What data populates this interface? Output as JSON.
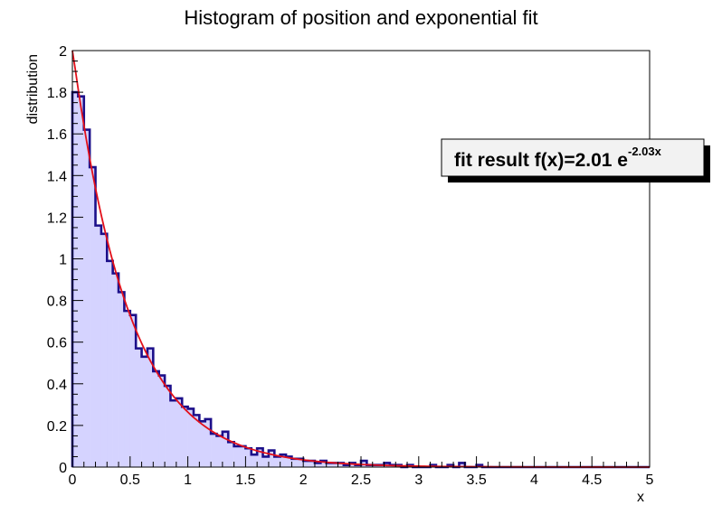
{
  "chart_data": {
    "type": "bar",
    "title": "Histogram of position and exponential fit",
    "xlabel": "x",
    "ylabel": "distribution",
    "xlim": [
      0,
      5
    ],
    "ylim": [
      0,
      2
    ],
    "xticks": [
      "0",
      "0.5",
      "1",
      "1.5",
      "2",
      "2.5",
      "3",
      "3.5",
      "4",
      "4.5",
      "5"
    ],
    "yticks": [
      "0",
      "0.2",
      "0.4",
      "0.6",
      "0.8",
      "1",
      "1.2",
      "1.4",
      "1.6",
      "1.8",
      "2"
    ],
    "grid": false,
    "bin_width": 0.05,
    "histogram": {
      "fill_color": "#d5d3ff",
      "line_color": "#1c0f8a",
      "values": [
        1.8,
        1.78,
        1.62,
        1.44,
        1.16,
        1.12,
        0.99,
        0.93,
        0.84,
        0.75,
        0.73,
        0.57,
        0.53,
        0.57,
        0.46,
        0.44,
        0.39,
        0.32,
        0.33,
        0.29,
        0.28,
        0.25,
        0.22,
        0.23,
        0.16,
        0.15,
        0.17,
        0.12,
        0.1,
        0.1,
        0.09,
        0.06,
        0.09,
        0.05,
        0.08,
        0.05,
        0.06,
        0.05,
        0.04,
        0.04,
        0.03,
        0.03,
        0.02,
        0.03,
        0.02,
        0.02,
        0.02,
        0.01,
        0.02,
        0.01,
        0.03,
        0.01,
        0.01,
        0.01,
        0.02,
        0.01,
        0.01,
        0.0,
        0.01,
        0.0,
        0.0,
        0.0,
        0.01,
        0.0,
        0.0,
        0.01,
        0.0,
        0.02,
        0.0,
        0.0,
        0.01,
        0.0,
        0.0,
        0.0,
        0.0,
        0.0,
        0.0,
        0.0,
        0.0,
        0.0,
        0.0,
        0.0,
        0.0,
        0.0,
        0.0,
        0.0,
        0.0,
        0.0,
        0.0,
        0.0,
        0.0,
        0.0,
        0.0,
        0.0,
        0.0,
        0.0,
        0.0,
        0.0,
        0.0,
        0.0
      ]
    },
    "fit": {
      "function": "exponential",
      "amplitude": 2.01,
      "rate": 2.03,
      "line_color": "#e3101a"
    },
    "annotation": {
      "main": "fit result f(x)=2.01 e",
      "superscript": "-2.03x"
    }
  }
}
